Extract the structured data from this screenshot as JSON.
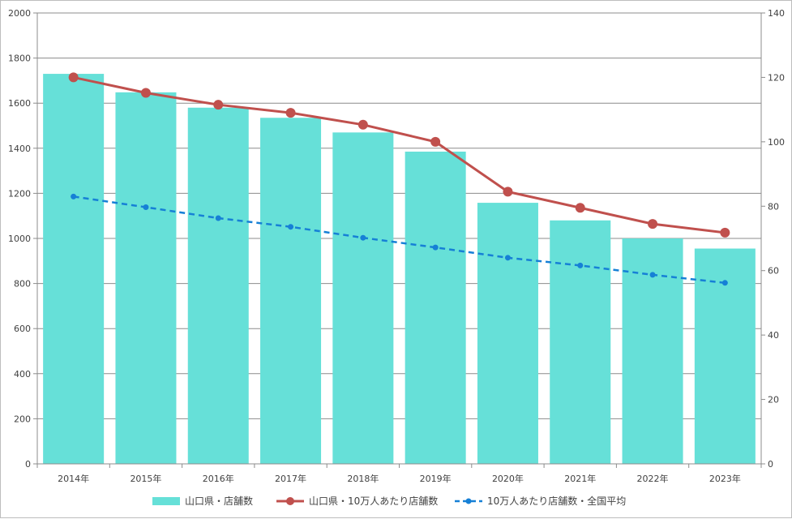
{
  "chart_data": {
    "type": "bar",
    "categories": [
      "2014年",
      "2015年",
      "2016年",
      "2017年",
      "2018年",
      "2019年",
      "2020年",
      "2021年",
      "2022年",
      "2023年"
    ],
    "series": [
      {
        "name": "山口県・店舗数",
        "type": "bar",
        "axis": "left",
        "color": "#66e0d8",
        "values": [
          1730,
          1648,
          1580,
          1535,
          1470,
          1385,
          1158,
          1080,
          1000,
          955
        ]
      },
      {
        "name": "山口県・10万人あたり店舗数",
        "type": "line",
        "axis": "right",
        "color": "#c0504d",
        "values": [
          120.0,
          115.2,
          111.5,
          109.0,
          105.3,
          100.0,
          84.5,
          79.5,
          74.5,
          71.8
        ]
      },
      {
        "name": "10万人あたり店舗数・全国平均",
        "type": "line-dashed",
        "axis": "right",
        "color": "#1680d6",
        "values": [
          83.0,
          79.7,
          76.3,
          73.6,
          70.2,
          67.2,
          64.0,
          61.6,
          58.7,
          56.2
        ]
      }
    ],
    "y_left": {
      "min": 0,
      "max": 2000,
      "step": 200,
      "ticks": [
        "0",
        "200",
        "400",
        "600",
        "800",
        "1000",
        "1200",
        "1400",
        "1600",
        "1800",
        "2000"
      ]
    },
    "y_right": {
      "min": 0,
      "max": 140,
      "step": 20,
      "ticks": [
        "0",
        "20",
        "40",
        "60",
        "80",
        "100",
        "120",
        "140"
      ]
    },
    "title": "",
    "xlabel": "",
    "ylabel": "",
    "grid": true,
    "legend_position": "bottom"
  }
}
